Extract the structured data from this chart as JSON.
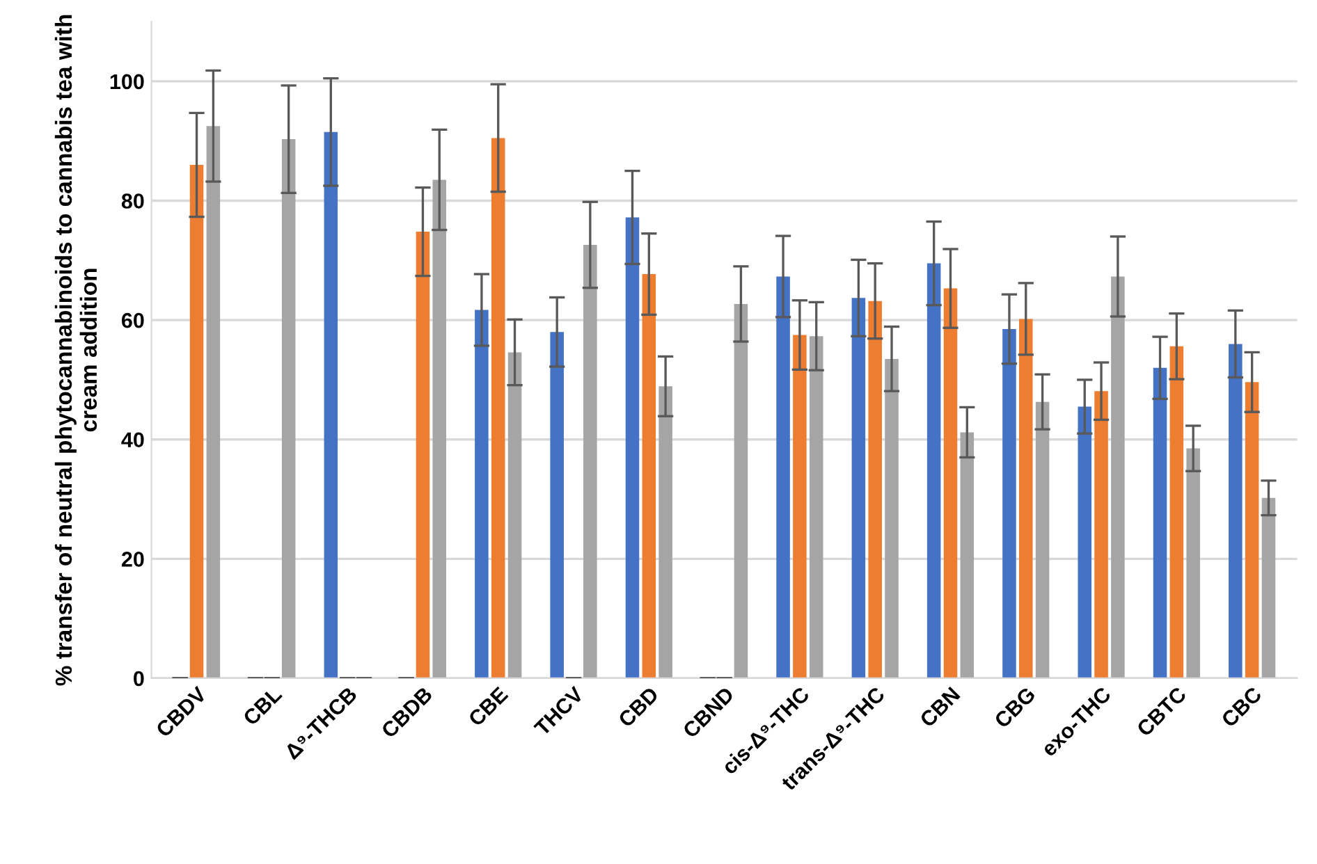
{
  "chart_data": {
    "type": "bar",
    "ylabel": "% transfer of neutral phytocannabinoids to cannabis tea with cream addition",
    "categories": [
      "CBDV",
      "CBL",
      "Δ⁹-THCB",
      "CBDB",
      "CBE",
      "THCV",
      "CBD",
      "CBND",
      "cis-Δ⁹-THC",
      "trans-Δ⁹-THC",
      "CBN",
      "CBG",
      "exo-THC",
      "CBTC",
      "CBC"
    ],
    "series": [
      {
        "color": "#4472c4",
        "values": [
          0,
          0,
          91.5,
          0,
          61.7,
          58,
          77.2,
          0,
          67.3,
          63.7,
          69.5,
          58.5,
          45.5,
          52,
          56
        ],
        "errors": [
          0,
          0,
          9,
          0,
          6,
          5.8,
          7.8,
          0,
          6.8,
          6.4,
          7,
          5.8,
          4.5,
          5.2,
          5.6
        ]
      },
      {
        "color": "#ed7d31",
        "values": [
          86,
          0,
          0,
          74.8,
          90.5,
          0,
          67.7,
          0,
          57.5,
          63.2,
          65.3,
          60.2,
          48.1,
          55.6,
          49.6
        ],
        "errors": [
          8.7,
          0,
          0,
          7.4,
          9,
          0,
          6.8,
          0,
          5.8,
          6.3,
          6.6,
          6,
          4.8,
          5.5,
          5
        ]
      },
      {
        "color": "#a5a5a5",
        "values": [
          92.5,
          90.3,
          0,
          83.5,
          54.6,
          72.6,
          48.9,
          62.7,
          57.3,
          53.5,
          41.2,
          46.3,
          67.3,
          38.5,
          30.2
        ],
        "errors": [
          9.3,
          9,
          0,
          8.4,
          5.5,
          7.2,
          5,
          6.3,
          5.7,
          5.4,
          4.2,
          4.6,
          6.7,
          3.8,
          2.9
        ]
      }
    ],
    "ylim": [
      0,
      110
    ],
    "yticks": [
      0,
      20,
      40,
      60,
      80,
      100
    ],
    "grid": "y"
  }
}
